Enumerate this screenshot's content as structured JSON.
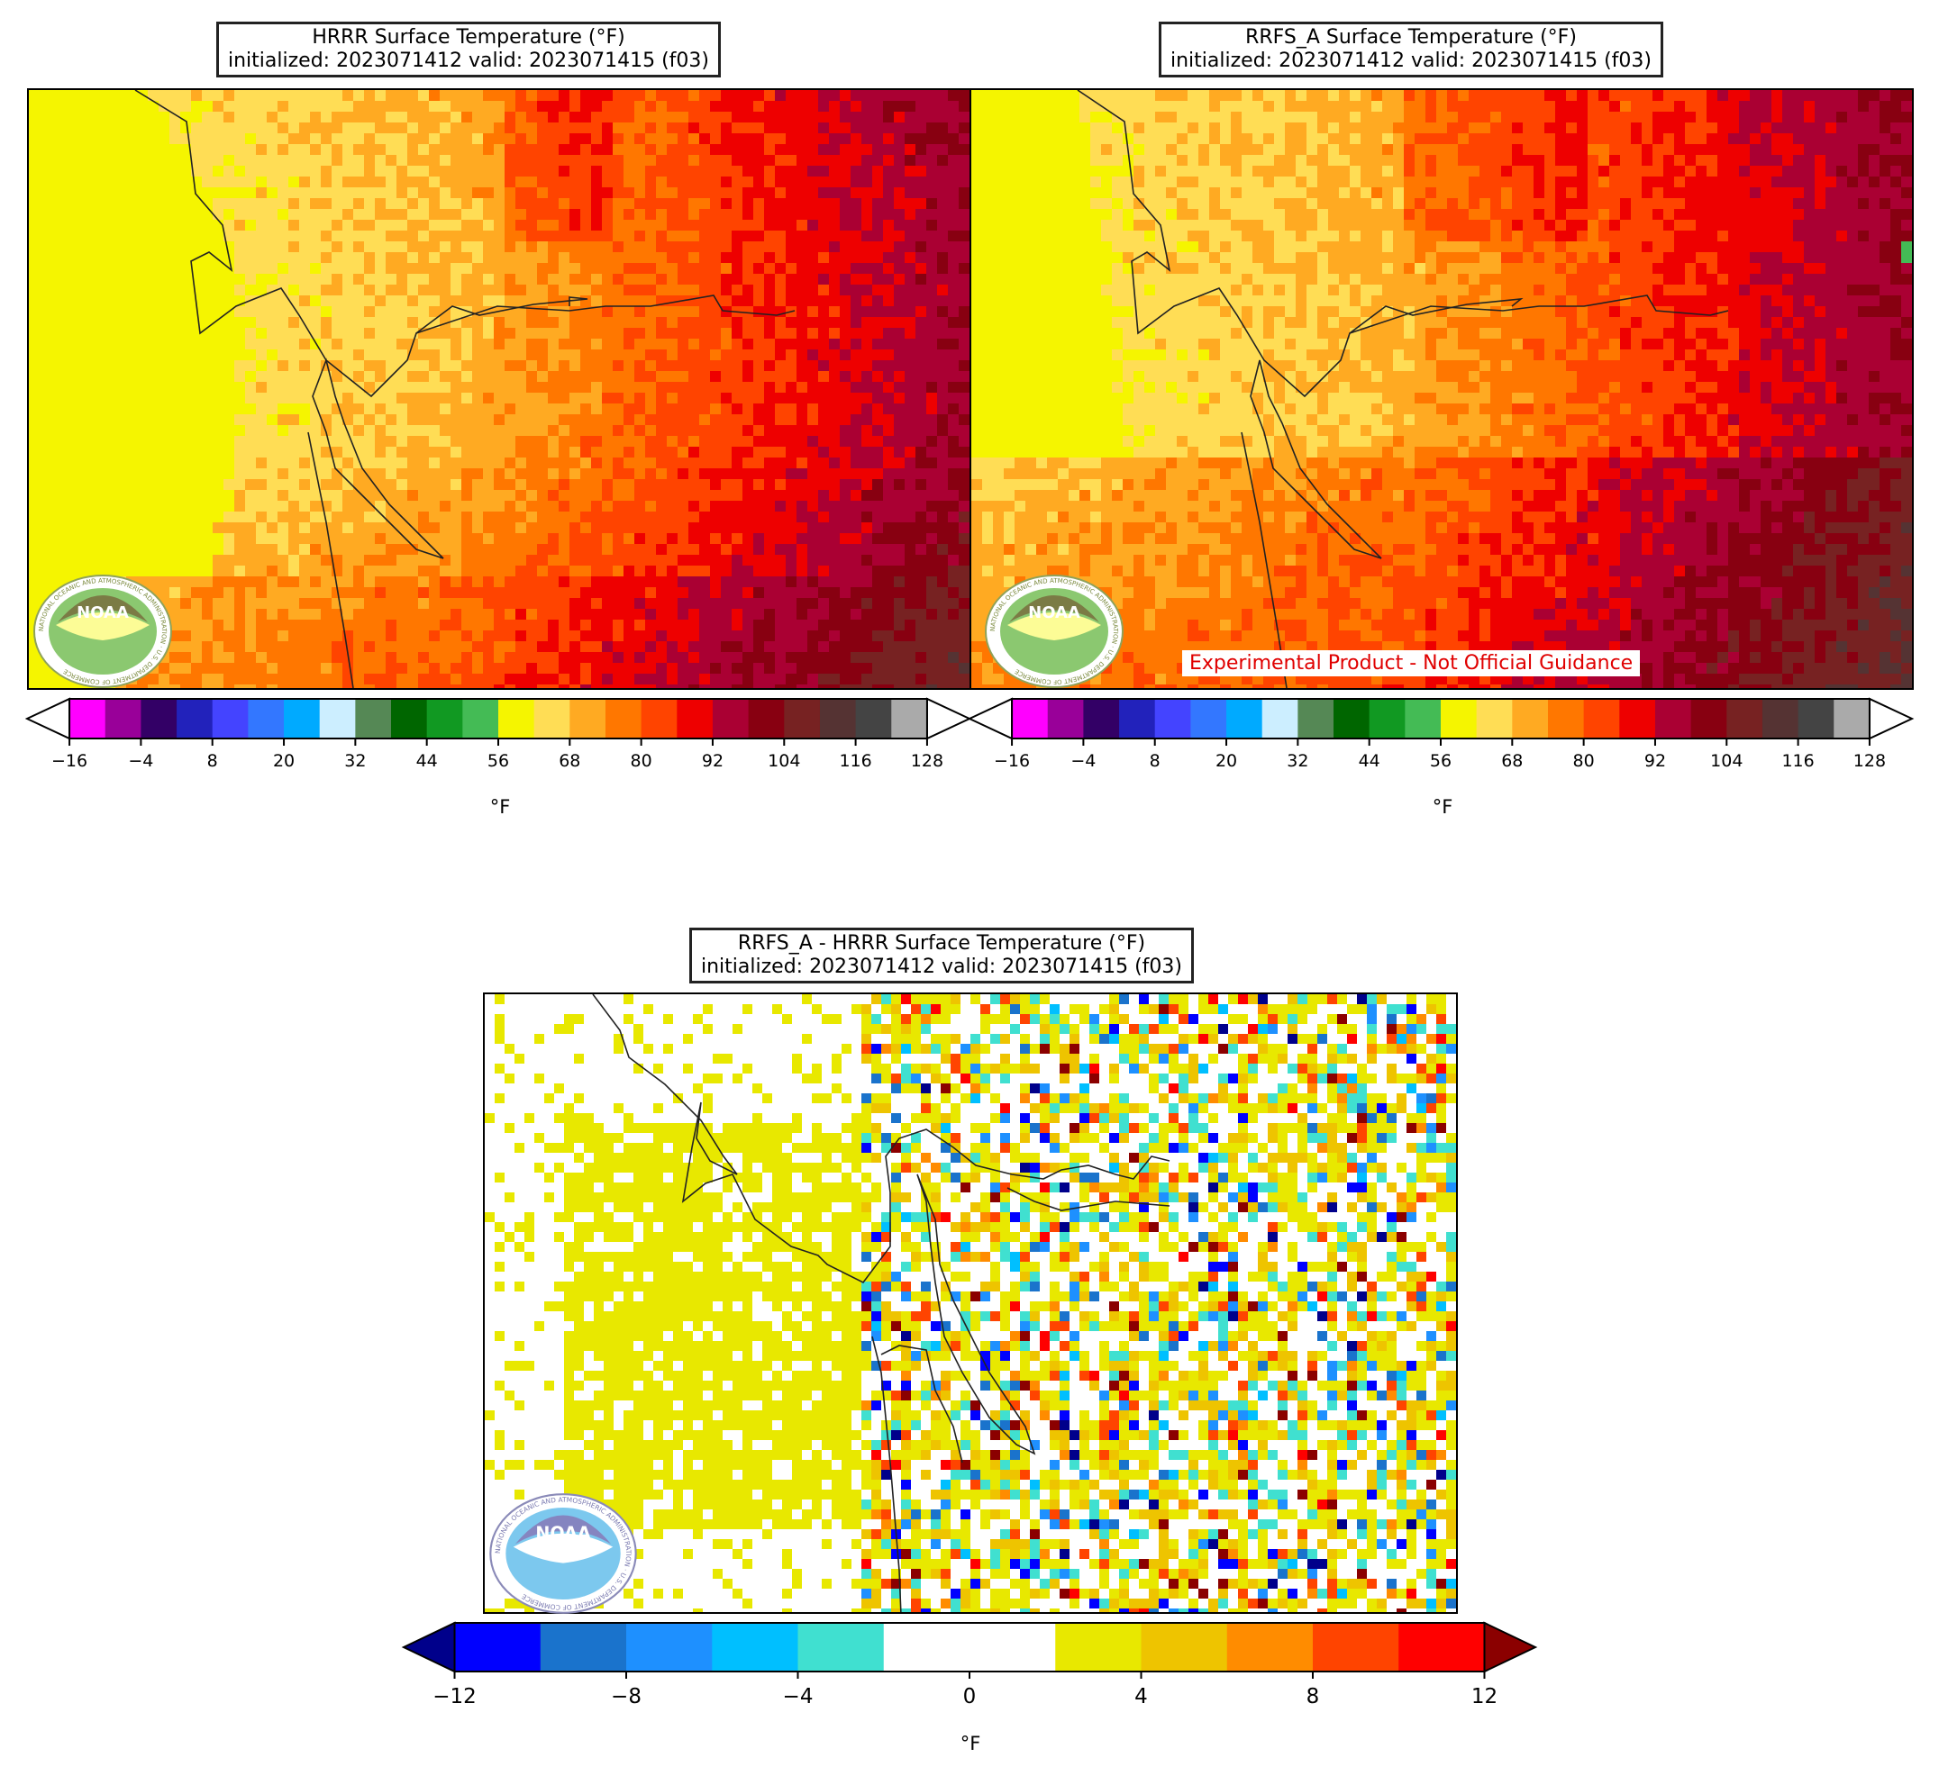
{
  "panels": {
    "hrrr": {
      "title_line1": "HRRR Surface Temperature (°F)",
      "title_line2": "initialized: 2023071412 valid: 2023071415 (f03)",
      "unit": "°F"
    },
    "rrfs": {
      "title_line1": "RRFS_A Surface Temperature (°F)",
      "title_line2": "initialized: 2023071412 valid: 2023071415 (f03)",
      "unit": "°F",
      "watermark": "Experimental Product - Not Official Guidance"
    },
    "diff": {
      "title_line1": "RRFS_A - HRRR Surface Temperature (°F)",
      "title_line2": "initialized: 2023071412 valid: 2023071415 (f03)",
      "unit": "°F"
    }
  },
  "logo": {
    "text": "NOAA",
    "ring_text": "NATIONAL OCEANIC AND ATMOSPHERIC ADMINISTRATION · U.S. DEPARTMENT OF COMMERCE"
  },
  "chart_data": [
    {
      "type": "heatmap",
      "title": "HRRR Surface Temperature (°F)",
      "subtitle": "initialized: 2023071412 valid: 2023071415 (f03)",
      "colorbar_label": "°F",
      "colorbar_ticks": [
        -16,
        -4,
        8,
        20,
        32,
        44,
        56,
        68,
        80,
        92,
        104,
        116,
        128
      ],
      "colorbar_extend": "both",
      "colors": [
        "#ff00ff",
        "#990099",
        "#330066",
        "#2222bb",
        "#4444ff",
        "#3377ff",
        "#00aaff",
        "#cceeff",
        "#558855",
        "#006600",
        "#119922",
        "#44bb55",
        "#f5f500",
        "#ffdd55",
        "#ffaa22",
        "#ff7700",
        "#ff4400",
        "#ee0000",
        "#aa0033",
        "#880011",
        "#772222",
        "#553333",
        "#444444",
        "#aaaaaa",
        "#ffffff"
      ]
    },
    {
      "type": "heatmap",
      "title": "RRFS_A Surface Temperature (°F)",
      "subtitle": "initialized: 2023071412 valid: 2023071415 (f03)",
      "colorbar_label": "°F",
      "colorbar_ticks": [
        -16,
        -4,
        8,
        20,
        32,
        44,
        56,
        68,
        80,
        92,
        104,
        116,
        128
      ],
      "colorbar_extend": "both"
    },
    {
      "type": "heatmap",
      "title": "RRFS_A - HRRR Surface Temperature (°F)",
      "subtitle": "initialized: 2023071412 valid: 2023071415 (f03)",
      "colorbar_label": "°F",
      "colorbar_ticks": [
        -12,
        -8,
        -4,
        0,
        4,
        8,
        12
      ],
      "colorbar_extend": "both",
      "colors": [
        "#0000ff",
        "#1a73cc",
        "#1e90ff",
        "#00bfff",
        "#40e0d0",
        "#ffffff",
        "#ffffff",
        "#e8e800",
        "#eec400",
        "#ff8c00",
        "#ff4400",
        "#ff0000"
      ],
      "extend_colors": {
        "under": "#00008b",
        "over": "#8b0000"
      }
    }
  ]
}
